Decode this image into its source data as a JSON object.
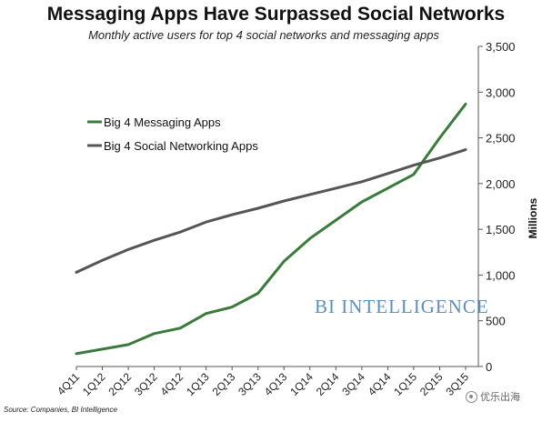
{
  "chart_data": {
    "type": "line",
    "title": "Messaging Apps Have Surpassed Social Networks",
    "subtitle": "Monthly active users for top 4 social networks and messaging apps",
    "xlabel": "",
    "ylabel": "Millions",
    "ylim": [
      0,
      3500
    ],
    "y_ticks": [
      "0",
      "500",
      "1,000",
      "1,500",
      "2,000",
      "2,500",
      "3,000",
      "3,500"
    ],
    "categories": [
      "4Q11",
      "1Q12",
      "2Q12",
      "3Q12",
      "4Q12",
      "1Q13",
      "2Q13",
      "3Q13",
      "4Q13",
      "1Q14",
      "2Q14",
      "3Q14",
      "4Q14",
      "1Q15",
      "2Q15",
      "3Q15"
    ],
    "grid": false,
    "legend_position": "upper-left",
    "series": [
      {
        "name": "Big 4 Messaging Apps",
        "color": "#3a7a3a",
        "values": [
          140,
          190,
          240,
          360,
          420,
          580,
          650,
          800,
          1150,
          1400,
          1600,
          1800,
          1950,
          2100,
          2500,
          2870
        ]
      },
      {
        "name": "Big 4 Social Networking Apps",
        "color": "#555555",
        "values": [
          1030,
          1160,
          1280,
          1380,
          1470,
          1580,
          1660,
          1730,
          1810,
          1880,
          1950,
          2020,
          2110,
          2200,
          2280,
          2370
        ]
      }
    ]
  },
  "brand": "BI INTELLIGENCE",
  "source": "Source: Companies, BI Intelligence",
  "watermark": "优乐出海"
}
